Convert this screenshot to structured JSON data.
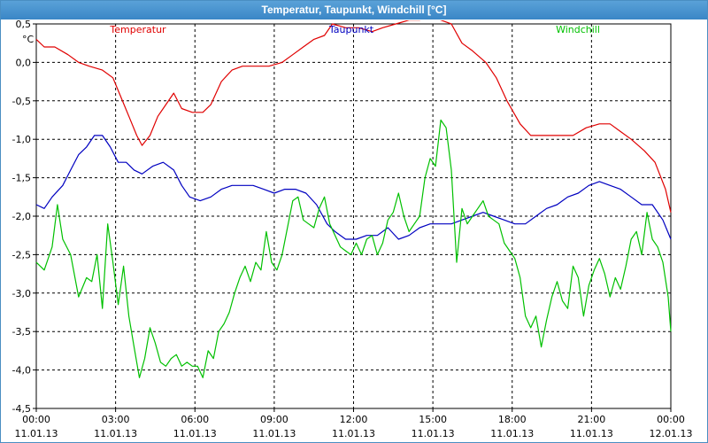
{
  "window": {
    "title": "Temperatur, Taupunkt, Windchill [°C]"
  },
  "chart_data": {
    "type": "line",
    "ylabel": "°C",
    "ylim": [
      -4.5,
      0.5
    ],
    "yticks": [
      0.5,
      0.0,
      -0.5,
      -1.0,
      -1.5,
      -2.0,
      -2.5,
      -3.0,
      -3.5,
      -4.0,
      -4.5
    ],
    "ytick_labels": [
      "0,5",
      "0,0",
      "-0,5",
      "-1,0",
      "-1,5",
      "-2,0",
      "-2,5",
      "-3,0",
      "-3,5",
      "-4,0",
      "-4,5"
    ],
    "xlim": [
      0,
      24
    ],
    "xticks": [
      {
        "hour": 0,
        "time": "00:00",
        "date": "11.01.13"
      },
      {
        "hour": 3,
        "time": "03:00",
        "date": "11.01.13"
      },
      {
        "hour": 6,
        "time": "06:00",
        "date": "11.01.13"
      },
      {
        "hour": 9,
        "time": "09:00",
        "date": "11.01.13"
      },
      {
        "hour": 12,
        "time": "12:00",
        "date": "11.01.13"
      },
      {
        "hour": 15,
        "time": "15:00",
        "date": "11.01.13"
      },
      {
        "hour": 18,
        "time": "18:00",
        "date": "11.01.13"
      },
      {
        "hour": 21,
        "time": "21:00",
        "date": "11.01.13"
      },
      {
        "hour": 24,
        "time": "00:00",
        "date": "12.01.13"
      }
    ],
    "grid": true,
    "series": [
      {
        "name": "Temperatur",
        "color": "#e00000",
        "points": [
          [
            0,
            0.3
          ],
          [
            0.3,
            0.2
          ],
          [
            0.7,
            0.2
          ],
          [
            1.2,
            0.1
          ],
          [
            1.6,
            0.0
          ],
          [
            2.0,
            -0.05
          ],
          [
            2.5,
            -0.1
          ],
          [
            2.9,
            -0.2
          ],
          [
            3.2,
            -0.45
          ],
          [
            3.5,
            -0.7
          ],
          [
            3.8,
            -0.95
          ],
          [
            4.0,
            -1.08
          ],
          [
            4.3,
            -0.95
          ],
          [
            4.6,
            -0.7
          ],
          [
            4.9,
            -0.55
          ],
          [
            5.2,
            -0.4
          ],
          [
            5.5,
            -0.6
          ],
          [
            5.9,
            -0.65
          ],
          [
            6.3,
            -0.65
          ],
          [
            6.6,
            -0.55
          ],
          [
            7.0,
            -0.25
          ],
          [
            7.4,
            -0.1
          ],
          [
            7.8,
            -0.05
          ],
          [
            8.3,
            -0.05
          ],
          [
            8.8,
            -0.05
          ],
          [
            9.3,
            0.0
          ],
          [
            9.7,
            0.1
          ],
          [
            10.1,
            0.2
          ],
          [
            10.5,
            0.3
          ],
          [
            10.9,
            0.35
          ],
          [
            11.2,
            0.5
          ],
          [
            11.7,
            0.45
          ],
          [
            12.2,
            0.45
          ],
          [
            12.7,
            0.4
          ],
          [
            13.1,
            0.45
          ],
          [
            13.6,
            0.5
          ],
          [
            14.1,
            0.55
          ],
          [
            14.5,
            0.55
          ],
          [
            14.9,
            0.6
          ],
          [
            15.3,
            0.55
          ],
          [
            15.7,
            0.5
          ],
          [
            16.1,
            0.25
          ],
          [
            16.5,
            0.15
          ],
          [
            17.0,
            0.0
          ],
          [
            17.4,
            -0.2
          ],
          [
            17.8,
            -0.5
          ],
          [
            18.3,
            -0.8
          ],
          [
            18.7,
            -0.95
          ],
          [
            19.3,
            -0.95
          ],
          [
            19.8,
            -0.95
          ],
          [
            20.3,
            -0.95
          ],
          [
            20.8,
            -0.85
          ],
          [
            21.3,
            -0.8
          ],
          [
            21.7,
            -0.8
          ],
          [
            22.1,
            -0.9
          ],
          [
            22.5,
            -1.0
          ],
          [
            23.0,
            -1.15
          ],
          [
            23.4,
            -1.3
          ],
          [
            23.8,
            -1.65
          ],
          [
            24.0,
            -1.95
          ]
        ]
      },
      {
        "name": "Taupunkt",
        "color": "#0000c0",
        "points": [
          [
            0,
            -1.85
          ],
          [
            0.3,
            -1.9
          ],
          [
            0.6,
            -1.75
          ],
          [
            1.0,
            -1.6
          ],
          [
            1.3,
            -1.4
          ],
          [
            1.6,
            -1.2
          ],
          [
            1.9,
            -1.1
          ],
          [
            2.2,
            -0.95
          ],
          [
            2.5,
            -0.95
          ],
          [
            2.8,
            -1.1
          ],
          [
            3.1,
            -1.3
          ],
          [
            3.4,
            -1.3
          ],
          [
            3.7,
            -1.4
          ],
          [
            4.0,
            -1.45
          ],
          [
            4.4,
            -1.35
          ],
          [
            4.8,
            -1.3
          ],
          [
            5.2,
            -1.4
          ],
          [
            5.5,
            -1.6
          ],
          [
            5.8,
            -1.75
          ],
          [
            6.2,
            -1.8
          ],
          [
            6.6,
            -1.75
          ],
          [
            7.0,
            -1.65
          ],
          [
            7.4,
            -1.6
          ],
          [
            7.8,
            -1.6
          ],
          [
            8.2,
            -1.6
          ],
          [
            8.6,
            -1.65
          ],
          [
            9.0,
            -1.7
          ],
          [
            9.4,
            -1.65
          ],
          [
            9.8,
            -1.65
          ],
          [
            10.2,
            -1.7
          ],
          [
            10.6,
            -1.85
          ],
          [
            11.0,
            -2.1
          ],
          [
            11.3,
            -2.2
          ],
          [
            11.7,
            -2.3
          ],
          [
            12.1,
            -2.3
          ],
          [
            12.5,
            -2.25
          ],
          [
            12.9,
            -2.25
          ],
          [
            13.3,
            -2.15
          ],
          [
            13.7,
            -2.3
          ],
          [
            14.1,
            -2.25
          ],
          [
            14.5,
            -2.15
          ],
          [
            14.9,
            -2.1
          ],
          [
            15.3,
            -2.1
          ],
          [
            15.7,
            -2.1
          ],
          [
            16.1,
            -2.05
          ],
          [
            16.5,
            -2.0
          ],
          [
            16.9,
            -1.95
          ],
          [
            17.3,
            -2.0
          ],
          [
            17.7,
            -2.05
          ],
          [
            18.1,
            -2.1
          ],
          [
            18.5,
            -2.1
          ],
          [
            18.9,
            -2.0
          ],
          [
            19.3,
            -1.9
          ],
          [
            19.7,
            -1.85
          ],
          [
            20.1,
            -1.75
          ],
          [
            20.5,
            -1.7
          ],
          [
            20.9,
            -1.6
          ],
          [
            21.3,
            -1.55
          ],
          [
            21.7,
            -1.6
          ],
          [
            22.1,
            -1.65
          ],
          [
            22.5,
            -1.75
          ],
          [
            22.9,
            -1.85
          ],
          [
            23.3,
            -1.85
          ],
          [
            23.7,
            -2.05
          ],
          [
            24.0,
            -2.3
          ]
        ]
      },
      {
        "name": "Windchill",
        "color": "#00c000",
        "points": [
          [
            0,
            -2.6
          ],
          [
            0.3,
            -2.7
          ],
          [
            0.6,
            -2.4
          ],
          [
            0.8,
            -1.85
          ],
          [
            1.0,
            -2.3
          ],
          [
            1.3,
            -2.5
          ],
          [
            1.6,
            -3.05
          ],
          [
            1.9,
            -2.8
          ],
          [
            2.1,
            -2.85
          ],
          [
            2.3,
            -2.5
          ],
          [
            2.5,
            -3.2
          ],
          [
            2.7,
            -2.1
          ],
          [
            2.9,
            -2.6
          ],
          [
            3.1,
            -3.15
          ],
          [
            3.3,
            -2.65
          ],
          [
            3.5,
            -3.3
          ],
          [
            3.7,
            -3.7
          ],
          [
            3.9,
            -4.1
          ],
          [
            4.1,
            -3.85
          ],
          [
            4.3,
            -3.45
          ],
          [
            4.5,
            -3.65
          ],
          [
            4.7,
            -3.9
          ],
          [
            4.9,
            -3.95
          ],
          [
            5.1,
            -3.85
          ],
          [
            5.3,
            -3.8
          ],
          [
            5.5,
            -3.95
          ],
          [
            5.7,
            -3.9
          ],
          [
            5.9,
            -3.95
          ],
          [
            6.1,
            -3.95
          ],
          [
            6.3,
            -4.1
          ],
          [
            6.5,
            -3.75
          ],
          [
            6.7,
            -3.85
          ],
          [
            6.9,
            -3.5
          ],
          [
            7.1,
            -3.4
          ],
          [
            7.3,
            -3.25
          ],
          [
            7.5,
            -3.0
          ],
          [
            7.7,
            -2.8
          ],
          [
            7.9,
            -2.65
          ],
          [
            8.1,
            -2.85
          ],
          [
            8.3,
            -2.6
          ],
          [
            8.5,
            -2.7
          ],
          [
            8.7,
            -2.2
          ],
          [
            8.9,
            -2.6
          ],
          [
            9.1,
            -2.7
          ],
          [
            9.3,
            -2.5
          ],
          [
            9.5,
            -2.15
          ],
          [
            9.7,
            -1.8
          ],
          [
            9.9,
            -1.75
          ],
          [
            10.1,
            -2.05
          ],
          [
            10.3,
            -2.1
          ],
          [
            10.5,
            -2.15
          ],
          [
            10.7,
            -1.9
          ],
          [
            10.9,
            -1.75
          ],
          [
            11.1,
            -2.1
          ],
          [
            11.3,
            -2.25
          ],
          [
            11.5,
            -2.4
          ],
          [
            11.7,
            -2.45
          ],
          [
            11.9,
            -2.5
          ],
          [
            12.1,
            -2.35
          ],
          [
            12.3,
            -2.5
          ],
          [
            12.5,
            -2.3
          ],
          [
            12.7,
            -2.25
          ],
          [
            12.9,
            -2.5
          ],
          [
            13.1,
            -2.35
          ],
          [
            13.3,
            -2.05
          ],
          [
            13.5,
            -1.95
          ],
          [
            13.7,
            -1.7
          ],
          [
            13.9,
            -2.0
          ],
          [
            14.1,
            -2.2
          ],
          [
            14.3,
            -2.1
          ],
          [
            14.5,
            -2.0
          ],
          [
            14.7,
            -1.5
          ],
          [
            14.9,
            -1.25
          ],
          [
            15.1,
            -1.35
          ],
          [
            15.3,
            -0.75
          ],
          [
            15.5,
            -0.85
          ],
          [
            15.7,
            -1.4
          ],
          [
            15.9,
            -2.6
          ],
          [
            16.1,
            -1.9
          ],
          [
            16.3,
            -2.1
          ],
          [
            16.5,
            -2.0
          ],
          [
            16.7,
            -1.9
          ],
          [
            16.9,
            -1.8
          ],
          [
            17.1,
            -2.0
          ],
          [
            17.3,
            -2.05
          ],
          [
            17.5,
            -2.1
          ],
          [
            17.7,
            -2.35
          ],
          [
            17.9,
            -2.45
          ],
          [
            18.1,
            -2.55
          ],
          [
            18.3,
            -2.8
          ],
          [
            18.5,
            -3.3
          ],
          [
            18.7,
            -3.45
          ],
          [
            18.9,
            -3.3
          ],
          [
            19.1,
            -3.7
          ],
          [
            19.3,
            -3.35
          ],
          [
            19.5,
            -3.05
          ],
          [
            19.7,
            -2.85
          ],
          [
            19.9,
            -3.1
          ],
          [
            20.1,
            -3.2
          ],
          [
            20.3,
            -2.65
          ],
          [
            20.5,
            -2.8
          ],
          [
            20.7,
            -3.3
          ],
          [
            20.9,
            -2.9
          ],
          [
            21.1,
            -2.7
          ],
          [
            21.3,
            -2.55
          ],
          [
            21.5,
            -2.75
          ],
          [
            21.7,
            -3.05
          ],
          [
            21.9,
            -2.8
          ],
          [
            22.1,
            -2.95
          ],
          [
            22.3,
            -2.65
          ],
          [
            22.5,
            -2.3
          ],
          [
            22.7,
            -2.2
          ],
          [
            22.9,
            -2.5
          ],
          [
            23.1,
            -1.95
          ],
          [
            23.3,
            -2.3
          ],
          [
            23.5,
            -2.4
          ],
          [
            23.7,
            -2.6
          ],
          [
            23.9,
            -3.05
          ],
          [
            24.0,
            -3.5
          ]
        ]
      }
    ]
  }
}
